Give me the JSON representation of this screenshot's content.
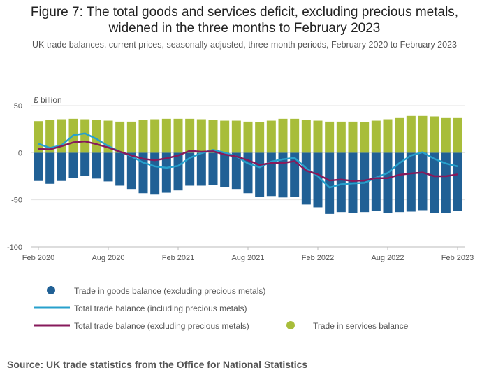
{
  "title_line1": "Figure 7: The total goods and services deficit, excluding precious metals,",
  "title_line2": "widened in the three months to February 2023",
  "subtitle": "UK trade balances, current prices, seasonally adjusted, three-month periods, February 2020 to February 2023",
  "source": "Source: UK trade statistics from the Office for National Statistics",
  "colors": {
    "goods": "#206095",
    "services": "#a8bd3a",
    "total_incl": "#27a0cc",
    "total_excl": "#871a5b"
  },
  "chart_data": {
    "type": "bar",
    "ylabel": "£ billion",
    "ylim": [
      -100,
      50
    ],
    "yticks": [
      50,
      0,
      -50,
      -100
    ],
    "grid": true,
    "stacked": true,
    "legend_placement": "bottom",
    "x_start": "Feb 2020",
    "x_end": "Feb 2023",
    "xtick_labels": [
      "Feb 2020",
      "Aug 2020",
      "Feb 2021",
      "Aug 2021",
      "Feb 2022",
      "Aug 2022",
      "Feb 2023"
    ],
    "series": [
      {
        "name": "Trade in goods balance (excluding precious metals)",
        "kind": "bar",
        "values": [
          -30,
          -33,
          -30,
          -27,
          -24.5,
          -27.5,
          -30.5,
          -35,
          -38.5,
          -43,
          -44.5,
          -42.5,
          -40,
          -35,
          -35,
          -34,
          -36.5,
          -38.5,
          -43,
          -47,
          -46,
          -47.5,
          -47,
          -55,
          -58,
          -65,
          -63,
          -64,
          -63,
          -62,
          -64,
          -63,
          -62.5,
          -61,
          -64,
          -64,
          -62
        ]
      },
      {
        "name": "Trade in services balance",
        "kind": "bar",
        "values": [
          33.5,
          35,
          35.5,
          36,
          35.5,
          35,
          34,
          33,
          33,
          35,
          35.5,
          36,
          36,
          36,
          35.5,
          35,
          34,
          34,
          33,
          32.5,
          34,
          36,
          36,
          35,
          34,
          33,
          33,
          33,
          32.5,
          34,
          35.5,
          37.5,
          39,
          39,
          38.5,
          37.5,
          37.5
        ]
      },
      {
        "name": "Total trade balance (including precious metals)",
        "kind": "line",
        "values": [
          9.5,
          5,
          8,
          18.5,
          20.5,
          14.5,
          7,
          1,
          -4,
          -10.5,
          -14.5,
          -16,
          -14,
          -5.5,
          -0.5,
          3,
          0,
          -4,
          -11.5,
          -15.5,
          -9.5,
          -7,
          -5.5,
          -16.5,
          -25,
          -37,
          -33.5,
          -32.5,
          -32,
          -26.5,
          -21.5,
          -11,
          -3,
          0.5,
          -6.5,
          -11.5,
          -14.5
        ]
      },
      {
        "name": "Total trade balance (excluding precious metals)",
        "kind": "line",
        "values": [
          4,
          3.5,
          7,
          11,
          12,
          9,
          5.5,
          1,
          -3,
          -6.5,
          -8,
          -6,
          -3,
          2,
          1,
          1.5,
          -2,
          -4,
          -8,
          -13,
          -11,
          -11,
          -9,
          -19,
          -23,
          -29.5,
          -28.5,
          -30,
          -29.5,
          -27,
          -27,
          -23.5,
          -22,
          -21,
          -25,
          -25,
          -23
        ]
      }
    ]
  }
}
